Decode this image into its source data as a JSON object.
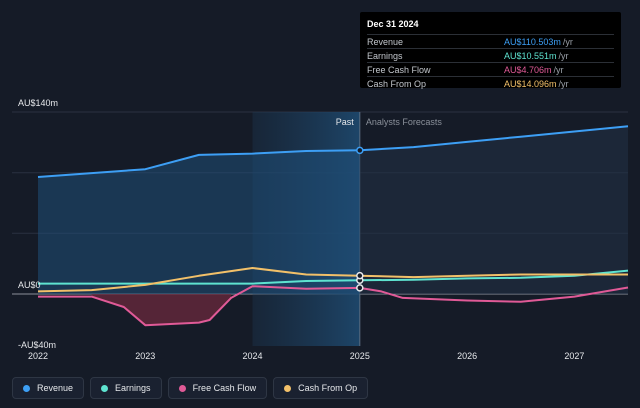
{
  "chart_data": {
    "type": "line",
    "x_labels": [
      "2022",
      "2023",
      "2024",
      "2025",
      "2026",
      "2027"
    ],
    "y_labels": [
      "AU$140m",
      "AU$0",
      "-AU$40m"
    ],
    "ylim": [
      -40,
      140
    ],
    "xlim": [
      2022,
      2027.5
    ],
    "past_label": "Past",
    "forecast_label": "Analysts Forecasts",
    "divider_x": 2025,
    "highlight_from": 2024,
    "series": [
      {
        "name": "Revenue",
        "color": "#3d9ff5",
        "points": [
          [
            2022.0,
            90
          ],
          [
            2023.0,
            96
          ],
          [
            2023.5,
            107
          ],
          [
            2024.0,
            108
          ],
          [
            2024.5,
            110
          ],
          [
            2025.0,
            110.5
          ],
          [
            2025.5,
            113
          ],
          [
            2026.0,
            117
          ],
          [
            2026.5,
            121
          ],
          [
            2027.0,
            125
          ],
          [
            2027.5,
            129
          ]
        ]
      },
      {
        "name": "Earnings",
        "color": "#5ee3d0",
        "points": [
          [
            2022.0,
            8
          ],
          [
            2023.0,
            8
          ],
          [
            2023.5,
            8
          ],
          [
            2024.0,
            8
          ],
          [
            2024.5,
            10
          ],
          [
            2025.0,
            10.551
          ],
          [
            2025.5,
            11
          ],
          [
            2026.0,
            12
          ],
          [
            2026.5,
            12.5
          ],
          [
            2027.0,
            14
          ],
          [
            2027.5,
            18
          ]
        ]
      },
      {
        "name": "Free Cash Flow",
        "color": "#e05a97",
        "points": [
          [
            2022.0,
            -2
          ],
          [
            2022.5,
            -2
          ],
          [
            2022.8,
            -10
          ],
          [
            2023.0,
            -24
          ],
          [
            2023.5,
            -22
          ],
          [
            2023.6,
            -20
          ],
          [
            2023.8,
            -3
          ],
          [
            2024.0,
            6
          ],
          [
            2024.5,
            4
          ],
          [
            2025.0,
            4.706
          ],
          [
            2025.2,
            2
          ],
          [
            2025.4,
            -3
          ],
          [
            2026.0,
            -5
          ],
          [
            2026.5,
            -6
          ],
          [
            2027.0,
            -2
          ],
          [
            2027.5,
            5
          ]
        ]
      },
      {
        "name": "Cash From Op",
        "color": "#f2c069",
        "points": [
          [
            2022.0,
            2
          ],
          [
            2022.5,
            3
          ],
          [
            2023.0,
            7
          ],
          [
            2023.5,
            14
          ],
          [
            2024.0,
            20
          ],
          [
            2024.5,
            15
          ],
          [
            2025.0,
            14.096
          ],
          [
            2025.5,
            13
          ],
          [
            2026.0,
            14
          ],
          [
            2026.5,
            15
          ],
          [
            2027.0,
            15
          ],
          [
            2027.5,
            15
          ]
        ]
      }
    ]
  },
  "tooltip": {
    "date": "Dec 31 2024",
    "rows": [
      {
        "label": "Revenue",
        "value": "AU$110.503m",
        "unit": "/yr",
        "color": "#3d9ff5"
      },
      {
        "label": "Earnings",
        "value": "AU$10.551m",
        "unit": "/yr",
        "color": "#5ee3d0"
      },
      {
        "label": "Free Cash Flow",
        "value": "AU$4.706m",
        "unit": "/yr",
        "color": "#e05a97"
      },
      {
        "label": "Cash From Op",
        "value": "AU$14.096m",
        "unit": "/yr",
        "color": "#f2c069"
      }
    ]
  },
  "legend": [
    {
      "label": "Revenue",
      "color": "#3d9ff5"
    },
    {
      "label": "Earnings",
      "color": "#5ee3d0"
    },
    {
      "label": "Free Cash Flow",
      "color": "#e05a97"
    },
    {
      "label": "Cash From Op",
      "color": "#f2c069"
    }
  ]
}
